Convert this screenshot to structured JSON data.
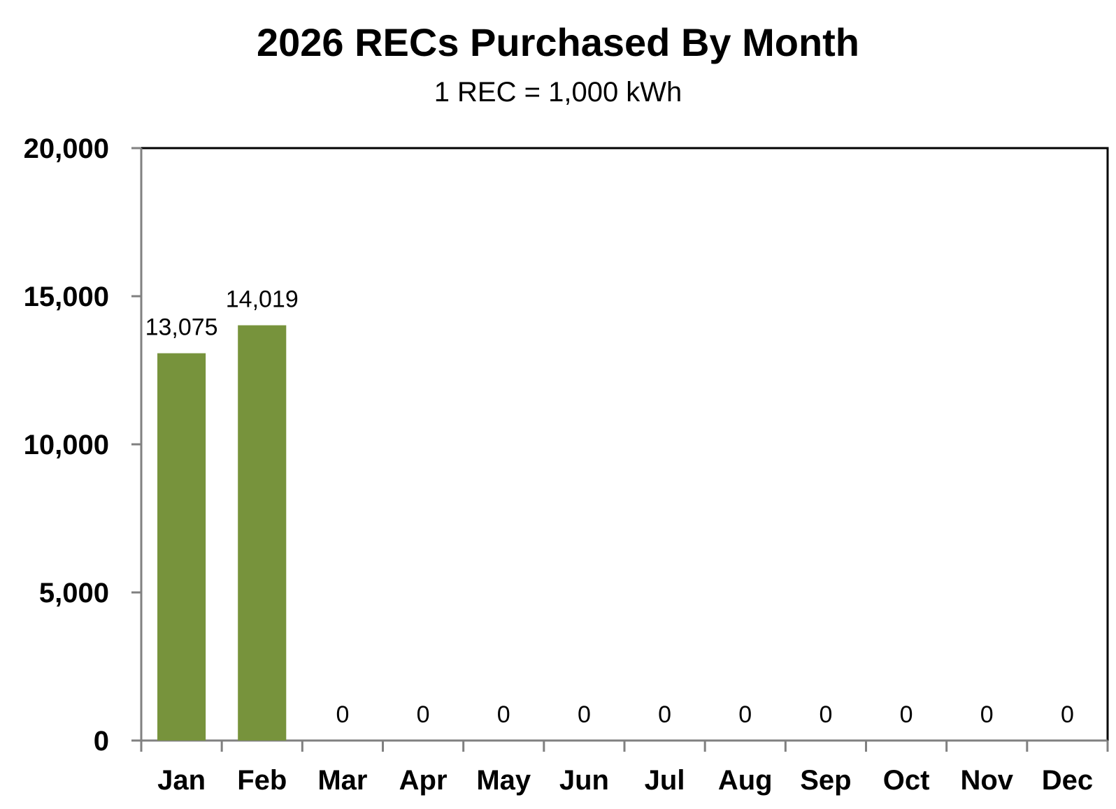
{
  "chart_data": {
    "type": "bar",
    "title": "2026 RECs Purchased By Month",
    "subtitle": "1 REC = 1,000 kWh",
    "xlabel": "",
    "ylabel": "",
    "categories": [
      "Jan",
      "Feb",
      "Mar",
      "Apr",
      "May",
      "Jun",
      "Jul",
      "Aug",
      "Sep",
      "Oct",
      "Nov",
      "Dec"
    ],
    "values": [
      13075,
      14019,
      0,
      0,
      0,
      0,
      0,
      0,
      0,
      0,
      0,
      0
    ],
    "data_labels": [
      "13,075",
      "14,019",
      "0",
      "0",
      "0",
      "0",
      "0",
      "0",
      "0",
      "0",
      "0",
      "0"
    ],
    "ylim": [
      0,
      20000
    ],
    "yticks": [
      0,
      5000,
      10000,
      15000,
      20000
    ],
    "ytick_labels": [
      "0",
      "5,000",
      "10,000",
      "15,000",
      "20,000"
    ],
    "grid": false,
    "legend": "none",
    "bar_color": "#77933C"
  }
}
